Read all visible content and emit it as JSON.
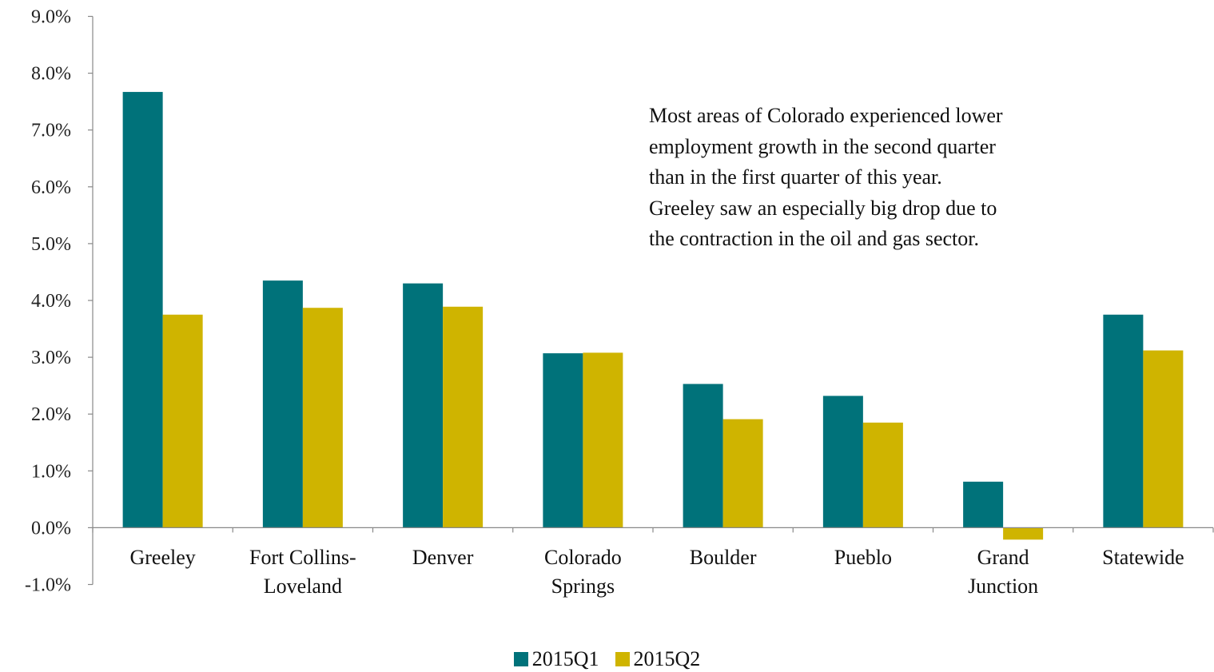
{
  "chart_data": {
    "type": "bar",
    "title": "",
    "xlabel": "",
    "ylabel": "",
    "categories": [
      [
        "Greeley"
      ],
      [
        "Fort Collins-",
        "Loveland"
      ],
      [
        "Denver"
      ],
      [
        "Colorado",
        "Springs"
      ],
      [
        "Boulder"
      ],
      [
        "Pueblo"
      ],
      [
        "Grand",
        "Junction"
      ],
      [
        "Statewide"
      ]
    ],
    "series": [
      {
        "name": "2015Q1",
        "color": "#00727A",
        "values": [
          7.67,
          4.35,
          4.3,
          3.07,
          2.53,
          2.32,
          0.81,
          3.75
        ]
      },
      {
        "name": "2015Q2",
        "color": "#CFB400",
        "values": [
          3.75,
          3.87,
          3.89,
          3.08,
          1.91,
          1.85,
          -0.21,
          3.12
        ]
      }
    ],
    "ylim": [
      -1.0,
      9.0
    ],
    "yticks": [
      "9.0%",
      "8.0%",
      "7.0%",
      "6.0%",
      "5.0%",
      "4.0%",
      "3.0%",
      "2.0%",
      "1.0%",
      "0.0%",
      "-1.0%"
    ],
    "ytick_values": [
      9,
      8,
      7,
      6,
      5,
      4,
      3,
      2,
      1,
      0,
      -1
    ],
    "grid": false,
    "legend_position": "bottom-center",
    "annotation": [
      "Most areas of Colorado experienced lower",
      "employment growth in the second quarter",
      "than in the first quarter of this year.",
      "Greeley saw an especially big drop due to",
      "the contraction in the oil and gas sector."
    ]
  }
}
